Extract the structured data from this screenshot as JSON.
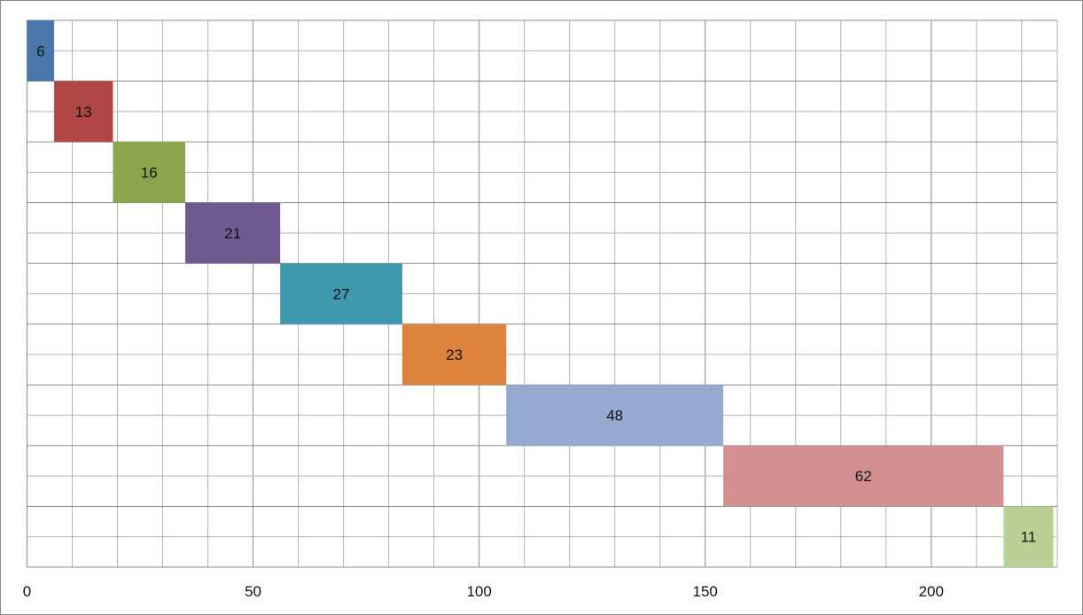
{
  "chart_data": {
    "type": "bar",
    "orientation": "horizontal",
    "stacked_waterfall": true,
    "title": "",
    "xlabel": "",
    "ylabel": "",
    "xlim": [
      0,
      227
    ],
    "x_ticks": [
      0,
      50,
      100,
      150,
      200
    ],
    "x_tick_labels": [
      "0",
      "50",
      "100",
      "150",
      "200"
    ],
    "grid": true,
    "legend": "none",
    "bars": [
      {
        "start": 0,
        "value": 6,
        "label": "6",
        "color": "#4a78ad"
      },
      {
        "start": 6,
        "value": 13,
        "label": "13",
        "color": "#b04745"
      },
      {
        "start": 19,
        "value": 16,
        "label": "16",
        "color": "#8aa64c"
      },
      {
        "start": 35,
        "value": 21,
        "label": "21",
        "color": "#705a90"
      },
      {
        "start": 56,
        "value": 27,
        "label": "27",
        "color": "#3f99ae"
      },
      {
        "start": 83,
        "value": 23,
        "label": "23",
        "color": "#dd823d"
      },
      {
        "start": 106,
        "value": 48,
        "label": "48",
        "color": "#95a9d1"
      },
      {
        "start": 154,
        "value": 62,
        "label": "62",
        "color": "#d49090"
      },
      {
        "start": 216,
        "value": 11,
        "label": "11",
        "color": "#b9d094"
      }
    ]
  }
}
